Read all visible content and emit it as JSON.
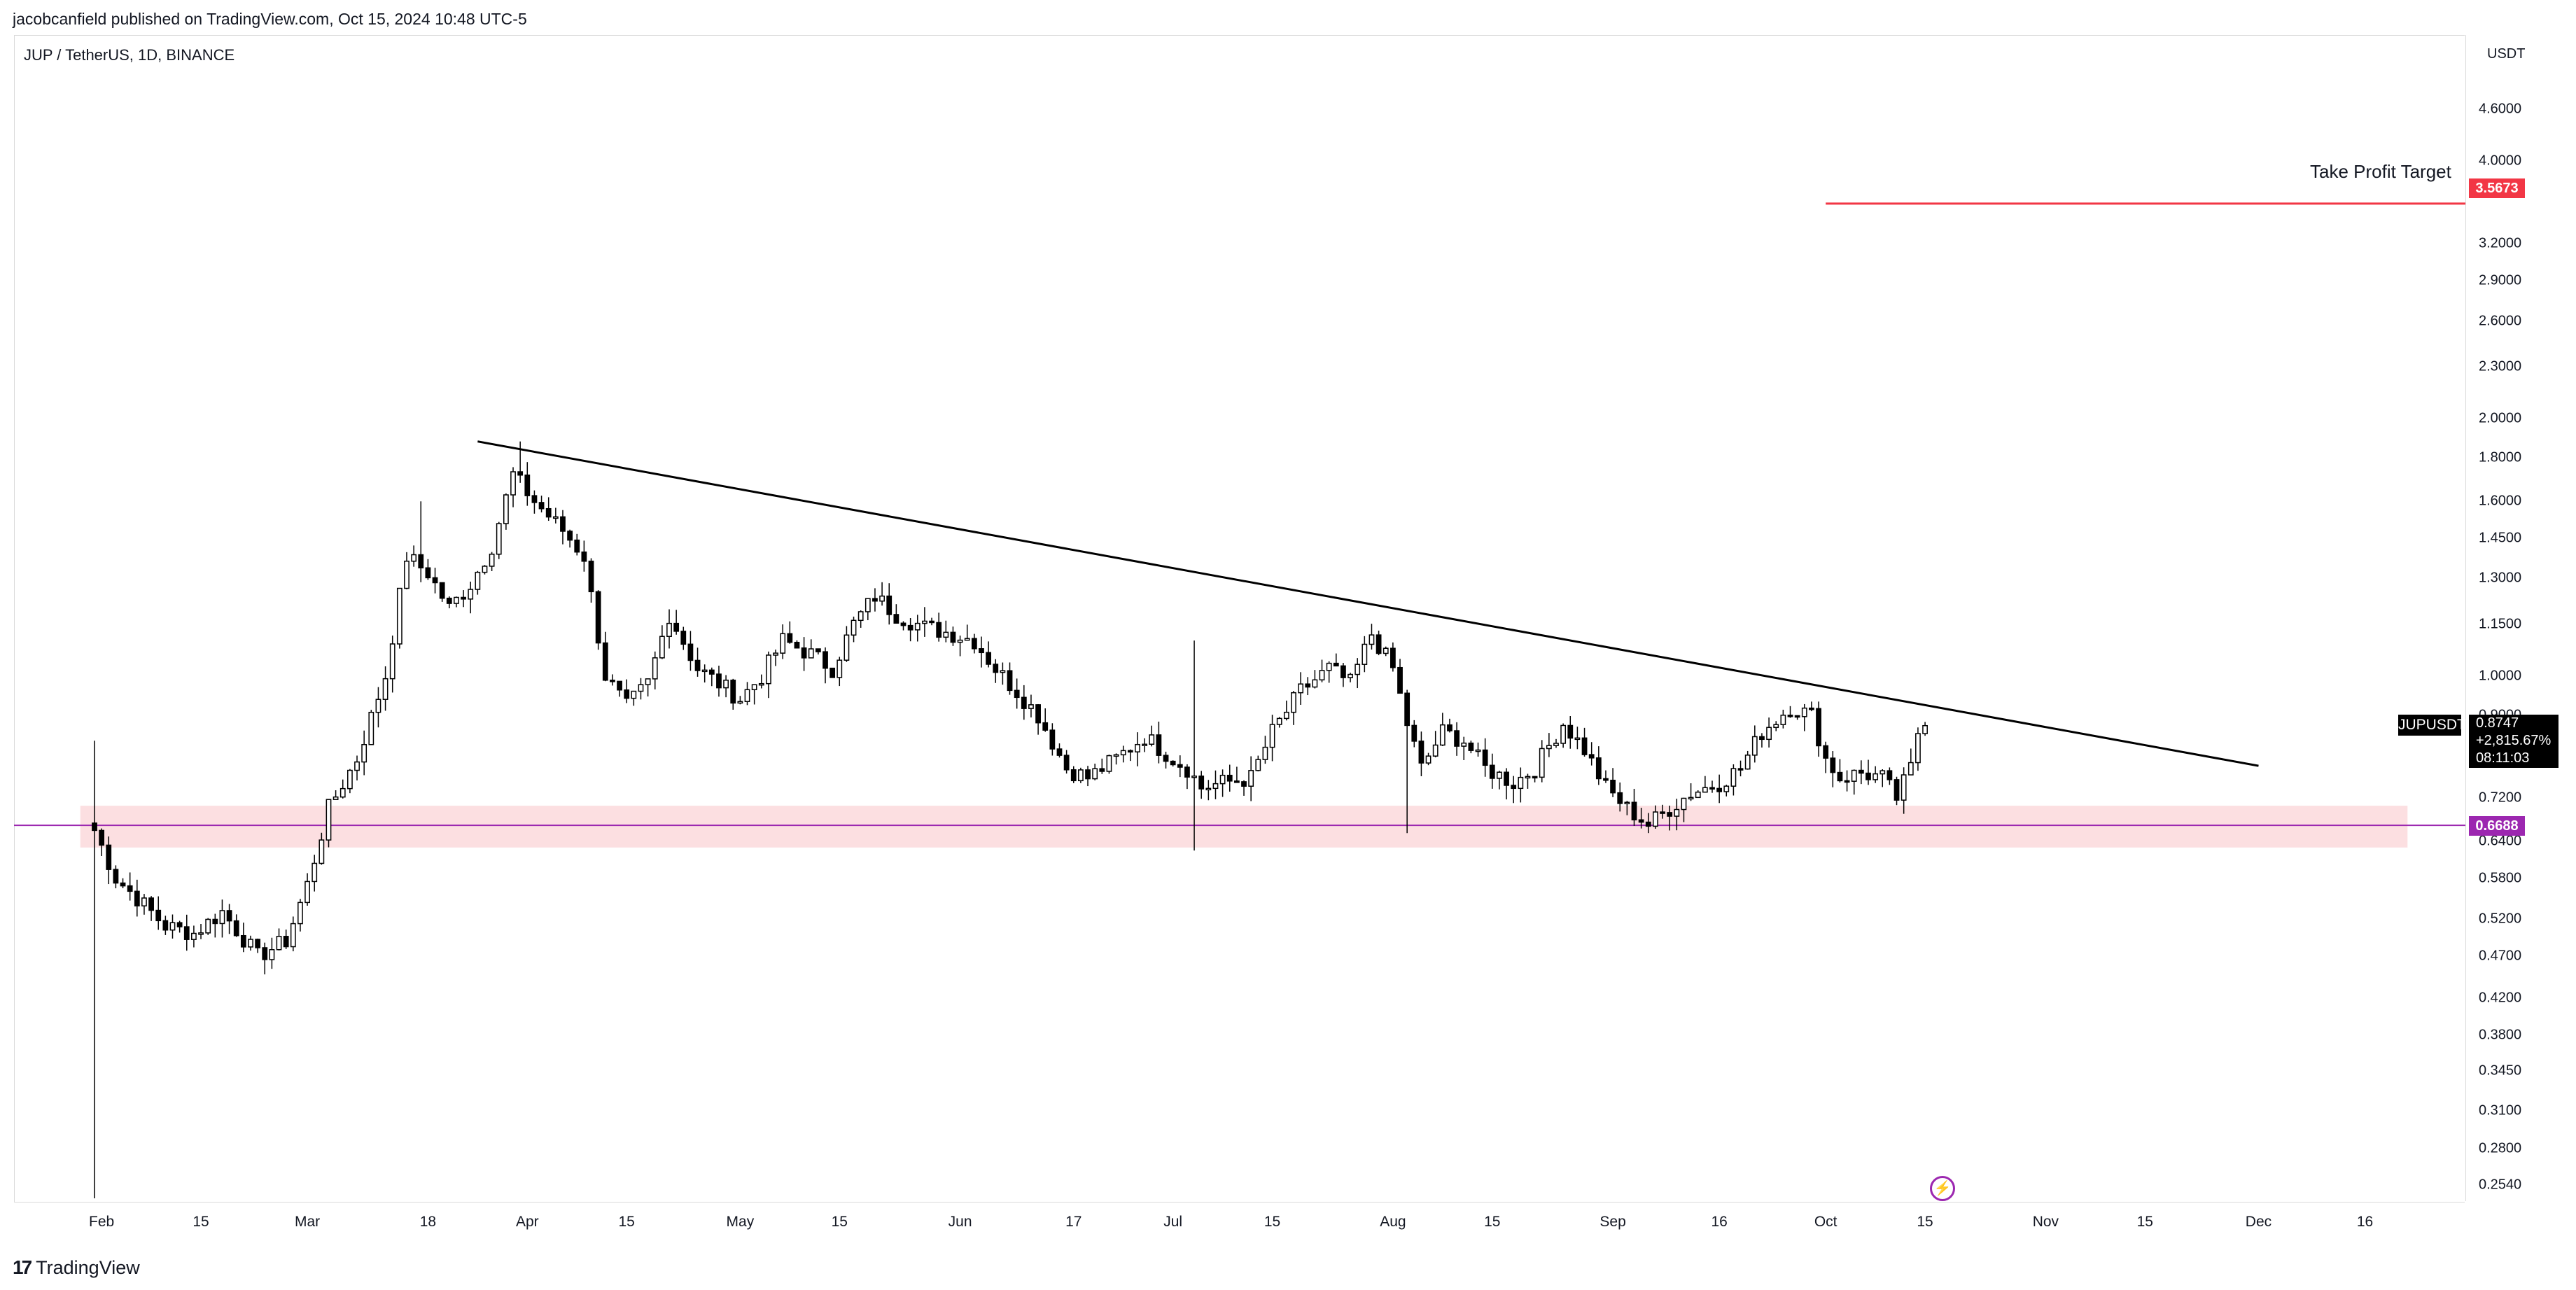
{
  "header": {
    "publisher": "jacobcanfield published on TradingView.com, Oct 15, 2024 10:48 UTC-5"
  },
  "symbol": {
    "info": "JUP / TetherUS, 1D, BINANCE",
    "badge": "JUPUSDT"
  },
  "price_axis": {
    "currency": "USDT"
  },
  "last_price": {
    "value": "0.8747",
    "change": "+2,815.67%",
    "countdown": "08:11:03"
  },
  "price_tags": {
    "target": "3.5673",
    "support": "0.6688"
  },
  "annotations": {
    "target_label": "Take Profit Target"
  },
  "footer": {
    "brand": "TradingView"
  },
  "colors": {
    "up_body": "#ffffff",
    "down_body": "#000000",
    "candle_outline": "#000000",
    "target_line": "#f23645",
    "support_zone": "#fbd9dc",
    "support_line": "#9c27b0",
    "trendline": "#000000"
  },
  "chart_data": {
    "type": "candlestick",
    "title": "JUP / TetherUS, 1D, BINANCE",
    "y_scale": "log",
    "ylim": [
      0.245,
      4.95
    ],
    "y_ticks": [
      "4.6000",
      "4.0000",
      "3.5673",
      "3.2000",
      "2.9000",
      "2.6000",
      "2.3000",
      "2.0000",
      "1.8000",
      "1.6000",
      "1.4500",
      "1.3000",
      "1.1500",
      "1.0000",
      "0.9000",
      "0.7200",
      "0.6400",
      "0.5800",
      "0.5200",
      "0.4700",
      "0.4200",
      "0.3800",
      "0.3450",
      "0.3100",
      "0.2800",
      "0.2540"
    ],
    "x_start": "2024-01-31",
    "x_end": "2024-12-27",
    "x_ticks": [
      {
        "label": "Feb",
        "date": "2024-02-01"
      },
      {
        "label": "15",
        "date": "2024-02-15"
      },
      {
        "label": "Mar",
        "date": "2024-03-01"
      },
      {
        "label": "18",
        "date": "2024-03-18"
      },
      {
        "label": "Apr",
        "date": "2024-04-01"
      },
      {
        "label": "15",
        "date": "2024-04-15"
      },
      {
        "label": "May",
        "date": "2024-05-01"
      },
      {
        "label": "15",
        "date": "2024-05-15"
      },
      {
        "label": "Jun",
        "date": "2024-06-01"
      },
      {
        "label": "17",
        "date": "2024-06-17"
      },
      {
        "label": "Jul",
        "date": "2024-07-01"
      },
      {
        "label": "15",
        "date": "2024-07-15"
      },
      {
        "label": "Aug",
        "date": "2024-08-01"
      },
      {
        "label": "15",
        "date": "2024-08-15"
      },
      {
        "label": "Sep",
        "date": "2024-09-01"
      },
      {
        "label": "16",
        "date": "2024-09-16"
      },
      {
        "label": "Oct",
        "date": "2024-10-01"
      },
      {
        "label": "15",
        "date": "2024-10-15"
      },
      {
        "label": "Nov",
        "date": "2024-11-01"
      },
      {
        "label": "15",
        "date": "2024-11-15"
      },
      {
        "label": "Dec",
        "date": "2024-12-01"
      },
      {
        "label": "16",
        "date": "2024-12-16"
      }
    ],
    "anchors": [
      {
        "date": "2024-01-31",
        "close": 0.66
      },
      {
        "date": "2024-02-03",
        "close": 0.58
      },
      {
        "date": "2024-02-06",
        "close": 0.55
      },
      {
        "date": "2024-02-10",
        "close": 0.51
      },
      {
        "date": "2024-02-14",
        "close": 0.5
      },
      {
        "date": "2024-02-18",
        "close": 0.53
      },
      {
        "date": "2024-02-23",
        "close": 0.47
      },
      {
        "date": "2024-02-27",
        "close": 0.49
      },
      {
        "date": "2024-03-01",
        "close": 0.57
      },
      {
        "date": "2024-03-04",
        "close": 0.7
      },
      {
        "date": "2024-03-08",
        "close": 0.8
      },
      {
        "date": "2024-03-12",
        "close": 1.0
      },
      {
        "date": "2024-03-15",
        "close": 1.38
      },
      {
        "date": "2024-03-18",
        "close": 1.32
      },
      {
        "date": "2024-03-21",
        "close": 1.2
      },
      {
        "date": "2024-03-24",
        "close": 1.28
      },
      {
        "date": "2024-03-27",
        "close": 1.42
      },
      {
        "date": "2024-03-30",
        "close": 1.72
      },
      {
        "date": "2024-04-02",
        "close": 1.6
      },
      {
        "date": "2024-04-06",
        "close": 1.48
      },
      {
        "date": "2024-04-09",
        "close": 1.38
      },
      {
        "date": "2024-04-12",
        "close": 1.0
      },
      {
        "date": "2024-04-15",
        "close": 0.92
      },
      {
        "date": "2024-04-18",
        "close": 0.98
      },
      {
        "date": "2024-04-21",
        "close": 1.18
      },
      {
        "date": "2024-04-25",
        "close": 1.02
      },
      {
        "date": "2024-04-28",
        "close": 0.98
      },
      {
        "date": "2024-05-01",
        "close": 0.94
      },
      {
        "date": "2024-05-04",
        "close": 1.0
      },
      {
        "date": "2024-05-07",
        "close": 1.1
      },
      {
        "date": "2024-05-11",
        "close": 1.06
      },
      {
        "date": "2024-05-14",
        "close": 1.02
      },
      {
        "date": "2024-05-17",
        "close": 1.15
      },
      {
        "date": "2024-05-20",
        "close": 1.24
      },
      {
        "date": "2024-05-23",
        "close": 1.18
      },
      {
        "date": "2024-05-27",
        "close": 1.14
      },
      {
        "date": "2024-05-31",
        "close": 1.12
      },
      {
        "date": "2024-06-03",
        "close": 1.1
      },
      {
        "date": "2024-06-06",
        "close": 1.02
      },
      {
        "date": "2024-06-09",
        "close": 0.96
      },
      {
        "date": "2024-06-12",
        "close": 0.9
      },
      {
        "date": "2024-06-16",
        "close": 0.78
      },
      {
        "date": "2024-06-19",
        "close": 0.76
      },
      {
        "date": "2024-06-23",
        "close": 0.8
      },
      {
        "date": "2024-06-27",
        "close": 0.85
      },
      {
        "date": "2024-07-01",
        "close": 0.8
      },
      {
        "date": "2024-07-03",
        "close": 0.78
      },
      {
        "date": "2024-07-05",
        "close": 0.74
      },
      {
        "date": "2024-07-08",
        "close": 0.75
      },
      {
        "date": "2024-07-12",
        "close": 0.76
      },
      {
        "date": "2024-07-15",
        "close": 0.86
      },
      {
        "date": "2024-07-19",
        "close": 0.96
      },
      {
        "date": "2024-07-23",
        "close": 1.02
      },
      {
        "date": "2024-07-26",
        "close": 0.98
      },
      {
        "date": "2024-07-29",
        "close": 1.12
      },
      {
        "date": "2024-08-01",
        "close": 1.02
      },
      {
        "date": "2024-08-03",
        "close": 0.88
      },
      {
        "date": "2024-08-05",
        "close": 0.78
      },
      {
        "date": "2024-08-08",
        "close": 0.86
      },
      {
        "date": "2024-08-11",
        "close": 0.84
      },
      {
        "date": "2024-08-14",
        "close": 0.78
      },
      {
        "date": "2024-08-18",
        "close": 0.75
      },
      {
        "date": "2024-08-21",
        "close": 0.78
      },
      {
        "date": "2024-08-25",
        "close": 0.88
      },
      {
        "date": "2024-08-28",
        "close": 0.82
      },
      {
        "date": "2024-08-31",
        "close": 0.74
      },
      {
        "date": "2024-09-03",
        "close": 0.7
      },
      {
        "date": "2024-09-06",
        "close": 0.67
      },
      {
        "date": "2024-09-09",
        "close": 0.7
      },
      {
        "date": "2024-09-12",
        "close": 0.73
      },
      {
        "date": "2024-09-16",
        "close": 0.75
      },
      {
        "date": "2024-09-19",
        "close": 0.78
      },
      {
        "date": "2024-09-22",
        "close": 0.86
      },
      {
        "date": "2024-09-26",
        "close": 0.92
      },
      {
        "date": "2024-09-29",
        "close": 0.9
      },
      {
        "date": "2024-10-01",
        "close": 0.8
      },
      {
        "date": "2024-10-03",
        "close": 0.76
      },
      {
        "date": "2024-10-06",
        "close": 0.77
      },
      {
        "date": "2024-10-09",
        "close": 0.76
      },
      {
        "date": "2024-10-11",
        "close": 0.72
      },
      {
        "date": "2024-10-13",
        "close": 0.78
      },
      {
        "date": "2024-10-14",
        "close": 0.86
      },
      {
        "date": "2024-10-15",
        "close": 0.8747
      }
    ],
    "wick_extremes": [
      {
        "date": "2024-01-31",
        "low": 0.245,
        "high": 0.84
      },
      {
        "date": "2024-03-17",
        "high": 1.6
      },
      {
        "date": "2024-03-31",
        "high": 1.88
      },
      {
        "date": "2024-07-04",
        "low": 0.625,
        "high": 1.1
      },
      {
        "date": "2024-08-03",
        "low": 0.655
      },
      {
        "date": "2024-09-06",
        "low": 0.655
      }
    ],
    "trendline": {
      "start": {
        "date": "2024-03-25",
        "price": 1.88
      },
      "end": {
        "date": "2024-12-01",
        "price": 0.785
      }
    },
    "support_zone": {
      "from": "2024-01-29",
      "to": "2024-12-22",
      "low": 0.63,
      "high": 0.705
    },
    "support_level": 0.6688,
    "target_level": 3.5673,
    "target_line_from": "2024-10-01",
    "last_close": 0.8747
  }
}
